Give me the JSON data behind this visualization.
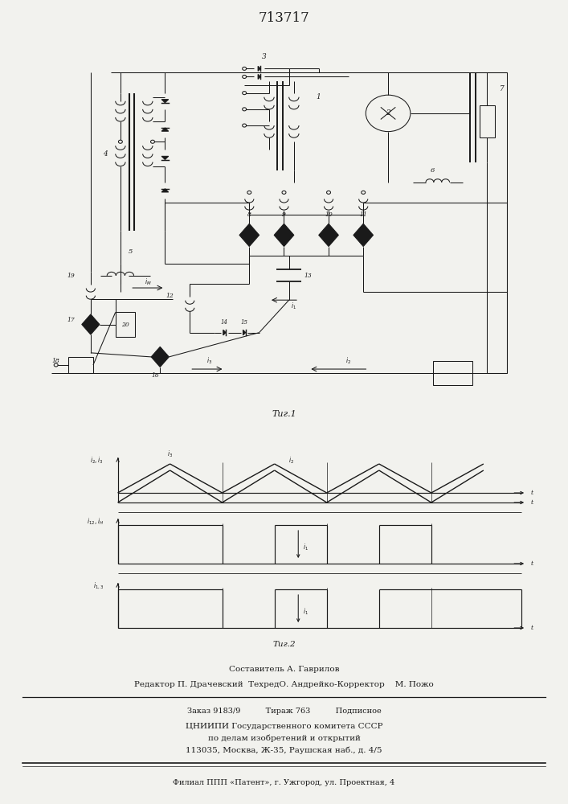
{
  "title": "713717",
  "bg_color": "#f2f2ee",
  "line_color": "#1a1a1a",
  "footer_lines": [
    "Составитель А. Гаврилов",
    "Редактор П. Драчевский  ТехредО. Андрейко-Корректор    М. Пожо",
    "Заказ 9183/9          Тираж 763          Подписное",
    "ЦНИИПИ Государственного комитета СССР",
    "по делам изобретений и открытий",
    "113035, Москва, Ж-35, Раушская наб., д. 4/5",
    "Филиал ППП «Патент», г. Ужгород, ул. Проектная, 4"
  ]
}
